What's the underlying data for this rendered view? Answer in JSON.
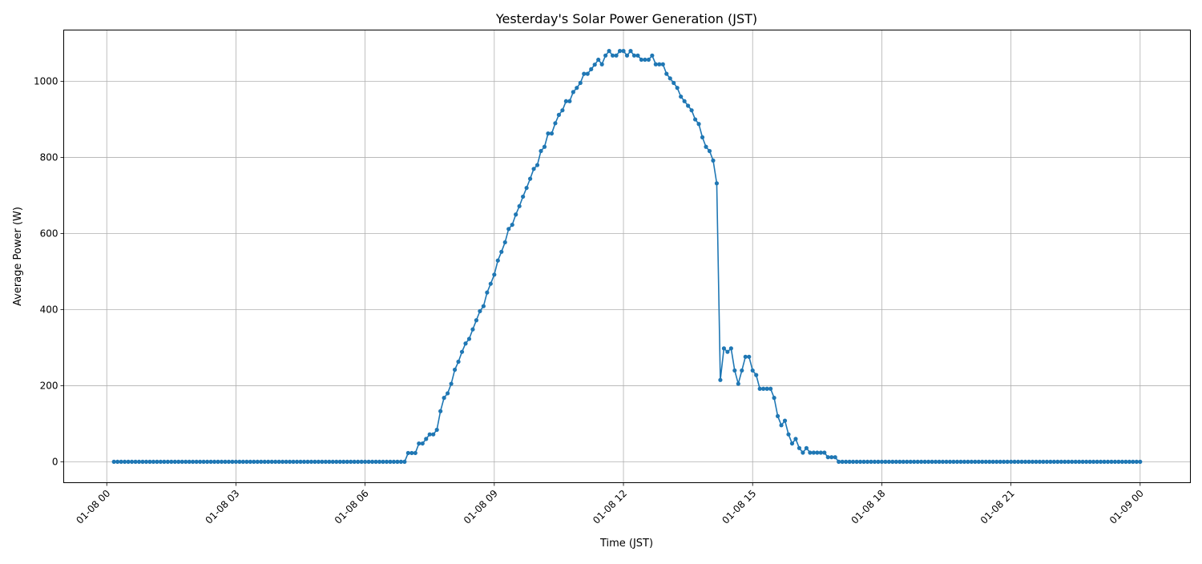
{
  "chart_data": {
    "type": "line",
    "title": "Yesterday's Solar Power Generation (JST)",
    "xlabel": "Time (JST)",
    "ylabel": "Average Power (W)",
    "x_ticks": [
      "01-08 00",
      "01-08 03",
      "01-08 06",
      "01-08 09",
      "01-08 12",
      "01-08 15",
      "01-08 18",
      "01-08 21",
      "01-09 00"
    ],
    "y_ticks": [
      0,
      200,
      400,
      600,
      800,
      1000
    ],
    "ylim": [
      -55,
      1135
    ],
    "xlim": [
      "01-07 23:00",
      "01-09 01:10"
    ],
    "grid": true,
    "marker": "circle",
    "color": "#1f77b4",
    "x": [
      "01-08 00:10",
      "01-08 00:15",
      "01-08 00:20",
      "01-08 00:25",
      "01-08 00:30",
      "01-08 00:35",
      "01-08 00:40",
      "01-08 00:45",
      "01-08 00:50",
      "01-08 00:55",
      "01-08 01:00",
      "01-08 01:05",
      "01-08 01:10",
      "01-08 01:15",
      "01-08 01:20",
      "01-08 01:25",
      "01-08 01:30",
      "01-08 01:35",
      "01-08 01:40",
      "01-08 01:45",
      "01-08 01:50",
      "01-08 01:55",
      "01-08 02:00",
      "01-08 02:05",
      "01-08 02:10",
      "01-08 02:15",
      "01-08 02:20",
      "01-08 02:25",
      "01-08 02:30",
      "01-08 02:35",
      "01-08 02:40",
      "01-08 02:45",
      "01-08 02:50",
      "01-08 02:55",
      "01-08 03:00",
      "01-08 03:05",
      "01-08 03:10",
      "01-08 03:15",
      "01-08 03:20",
      "01-08 03:25",
      "01-08 03:30",
      "01-08 03:35",
      "01-08 03:40",
      "01-08 03:45",
      "01-08 03:50",
      "01-08 03:55",
      "01-08 04:00",
      "01-08 04:05",
      "01-08 04:10",
      "01-08 04:15",
      "01-08 04:20",
      "01-08 04:25",
      "01-08 04:30",
      "01-08 04:35",
      "01-08 04:40",
      "01-08 04:45",
      "01-08 04:50",
      "01-08 04:55",
      "01-08 05:00",
      "01-08 05:05",
      "01-08 05:10",
      "01-08 05:15",
      "01-08 05:20",
      "01-08 05:25",
      "01-08 05:30",
      "01-08 05:35",
      "01-08 05:40",
      "01-08 05:45",
      "01-08 05:50",
      "01-08 05:55",
      "01-08 06:00",
      "01-08 06:05",
      "01-08 06:10",
      "01-08 06:15",
      "01-08 06:20",
      "01-08 06:25",
      "01-08 06:30",
      "01-08 06:35",
      "01-08 06:40",
      "01-08 06:45",
      "01-08 06:50",
      "01-08 06:55",
      "01-08 07:00",
      "01-08 07:05",
      "01-08 07:10",
      "01-08 07:15",
      "01-08 07:20",
      "01-08 07:25",
      "01-08 07:30",
      "01-08 07:35",
      "01-08 07:40",
      "01-08 07:45",
      "01-08 07:50",
      "01-08 07:55",
      "01-08 08:00",
      "01-08 08:05",
      "01-08 08:10",
      "01-08 08:15",
      "01-08 08:20",
      "01-08 08:25",
      "01-08 08:30",
      "01-08 08:35",
      "01-08 08:40",
      "01-08 08:45",
      "01-08 08:50",
      "01-08 08:55",
      "01-08 09:00",
      "01-08 09:05",
      "01-08 09:10",
      "01-08 09:15",
      "01-08 09:20",
      "01-08 09:25",
      "01-08 09:30",
      "01-08 09:35",
      "01-08 09:40",
      "01-08 09:45",
      "01-08 09:50",
      "01-08 09:55",
      "01-08 10:00",
      "01-08 10:05",
      "01-08 10:10",
      "01-08 10:15",
      "01-08 10:20",
      "01-08 10:25",
      "01-08 10:30",
      "01-08 10:35",
      "01-08 10:40",
      "01-08 10:45",
      "01-08 10:50",
      "01-08 10:55",
      "01-08 11:00",
      "01-08 11:05",
      "01-08 11:10",
      "01-08 11:15",
      "01-08 11:20",
      "01-08 11:25",
      "01-08 11:30",
      "01-08 11:35",
      "01-08 11:40",
      "01-08 11:45",
      "01-08 11:50",
      "01-08 11:55",
      "01-08 12:00",
      "01-08 12:05",
      "01-08 12:10",
      "01-08 12:15",
      "01-08 12:20",
      "01-08 12:25",
      "01-08 12:30",
      "01-08 12:35",
      "01-08 12:40",
      "01-08 12:45",
      "01-08 12:50",
      "01-08 12:55",
      "01-08 13:00",
      "01-08 13:05",
      "01-08 13:10",
      "01-08 13:15",
      "01-08 13:20",
      "01-08 13:25",
      "01-08 13:30",
      "01-08 13:35",
      "01-08 13:40",
      "01-08 13:45",
      "01-08 13:50",
      "01-08 13:55",
      "01-08 14:00",
      "01-08 14:05",
      "01-08 14:10",
      "01-08 14:15",
      "01-08 14:20",
      "01-08 14:25",
      "01-08 14:30",
      "01-08 14:35",
      "01-08 14:40",
      "01-08 14:45",
      "01-08 14:50",
      "01-08 14:55",
      "01-08 15:00",
      "01-08 15:05",
      "01-08 15:10",
      "01-08 15:15",
      "01-08 15:20",
      "01-08 15:25",
      "01-08 15:30",
      "01-08 15:35",
      "01-08 15:40",
      "01-08 15:45",
      "01-08 15:50",
      "01-08 15:55",
      "01-08 16:00",
      "01-08 16:05",
      "01-08 16:10",
      "01-08 16:15",
      "01-08 16:20",
      "01-08 16:25",
      "01-08 16:30",
      "01-08 16:35",
      "01-08 16:40",
      "01-08 16:45",
      "01-08 16:50",
      "01-08 16:55",
      "01-08 17:00",
      "01-08 17:05",
      "01-08 17:10",
      "01-08 17:15",
      "01-08 17:20",
      "01-08 17:25",
      "01-08 17:30",
      "01-08 17:35",
      "01-08 17:40",
      "01-08 17:45",
      "01-08 17:50",
      "01-08 17:55",
      "01-08 18:00",
      "01-08 18:05",
      "01-08 18:10",
      "01-08 18:15",
      "01-08 18:20",
      "01-08 18:25",
      "01-08 18:30",
      "01-08 18:35",
      "01-08 18:40",
      "01-08 18:45",
      "01-08 18:50",
      "01-08 18:55",
      "01-08 19:00",
      "01-08 19:05",
      "01-08 19:10",
      "01-08 19:15",
      "01-08 19:20",
      "01-08 19:25",
      "01-08 19:30",
      "01-08 19:35",
      "01-08 19:40",
      "01-08 19:45",
      "01-08 19:50",
      "01-08 19:55",
      "01-08 20:00",
      "01-08 20:05",
      "01-08 20:10",
      "01-08 20:15",
      "01-08 20:20",
      "01-08 20:25",
      "01-08 20:30",
      "01-08 20:35",
      "01-08 20:40",
      "01-08 20:45",
      "01-08 20:50",
      "01-08 20:55",
      "01-08 21:00",
      "01-08 21:05",
      "01-08 21:10",
      "01-08 21:15",
      "01-08 21:20",
      "01-08 21:25",
      "01-08 21:30",
      "01-08 21:35",
      "01-08 21:40",
      "01-08 21:45",
      "01-08 21:50",
      "01-08 21:55",
      "01-08 22:00",
      "01-08 22:05",
      "01-08 22:10",
      "01-08 22:15",
      "01-08 22:20",
      "01-08 22:25",
      "01-08 22:30",
      "01-08 22:35",
      "01-08 22:40",
      "01-08 22:45",
      "01-08 22:50",
      "01-08 22:55",
      "01-08 23:00",
      "01-08 23:05",
      "01-08 23:10",
      "01-08 23:15",
      "01-08 23:20",
      "01-08 23:25",
      "01-08 23:30",
      "01-08 23:35",
      "01-08 23:40",
      "01-08 23:45",
      "01-08 23:50",
      "01-08 23:55",
      "01-09 00:00"
    ],
    "values": [
      0,
      0,
      0,
      0,
      0,
      0,
      0,
      0,
      0,
      0,
      0,
      0,
      0,
      0,
      0,
      0,
      0,
      0,
      0,
      0,
      0,
      0,
      0,
      0,
      0,
      0,
      0,
      0,
      0,
      0,
      0,
      0,
      0,
      0,
      0,
      0,
      0,
      0,
      0,
      0,
      0,
      0,
      0,
      0,
      0,
      0,
      0,
      0,
      0,
      0,
      0,
      0,
      0,
      0,
      0,
      0,
      0,
      0,
      0,
      0,
      0,
      0,
      0,
      0,
      0,
      0,
      0,
      0,
      0,
      0,
      0,
      0,
      0,
      0,
      0,
      0,
      0,
      0,
      0,
      0,
      0,
      0,
      23,
      23,
      23,
      48,
      48,
      60,
      72,
      72,
      84,
      133,
      168,
      180,
      205,
      242,
      263,
      289,
      311,
      323,
      348,
      372,
      396,
      409,
      445,
      468,
      492,
      529,
      552,
      577,
      612,
      623,
      650,
      672,
      697,
      720,
      744,
      770,
      780,
      817,
      828,
      863,
      863,
      890,
      912,
      924,
      948,
      948,
      972,
      983,
      996,
      1020,
      1020,
      1032,
      1044,
      1057,
      1045,
      1068,
      1080,
      1068,
      1068,
      1080,
      1080,
      1068,
      1080,
      1068,
      1068,
      1057,
      1057,
      1057,
      1068,
      1045,
      1045,
      1045,
      1020,
      1008,
      996,
      983,
      960,
      948,
      936,
      924,
      900,
      888,
      853,
      828,
      817,
      792,
      732,
      215,
      298,
      289,
      298,
      240,
      205,
      240,
      276,
      276,
      240,
      228,
      192,
      192,
      192,
      192,
      168,
      120,
      96,
      108,
      72,
      48,
      60,
      36,
      24,
      36,
      24,
      24,
      24,
      24,
      24,
      12,
      12,
      12,
      0,
      0,
      0,
      0,
      0,
      0,
      0,
      0,
      0,
      0,
      0,
      0,
      0,
      0,
      0,
      0,
      0,
      0,
      0,
      0,
      0,
      0,
      0,
      0,
      0,
      0,
      0,
      0,
      0,
      0,
      0,
      0,
      0,
      0,
      0,
      0,
      0,
      0,
      0,
      0,
      0,
      0,
      0,
      0,
      0,
      0,
      0,
      0,
      0,
      0,
      0,
      0,
      0,
      0,
      0,
      0,
      0,
      0,
      0,
      0,
      0,
      0,
      0,
      0,
      0,
      0,
      0,
      0,
      0,
      0,
      0,
      0,
      0,
      0,
      0,
      0,
      0,
      0,
      0,
      0,
      0,
      0,
      0,
      0,
      0
    ]
  }
}
